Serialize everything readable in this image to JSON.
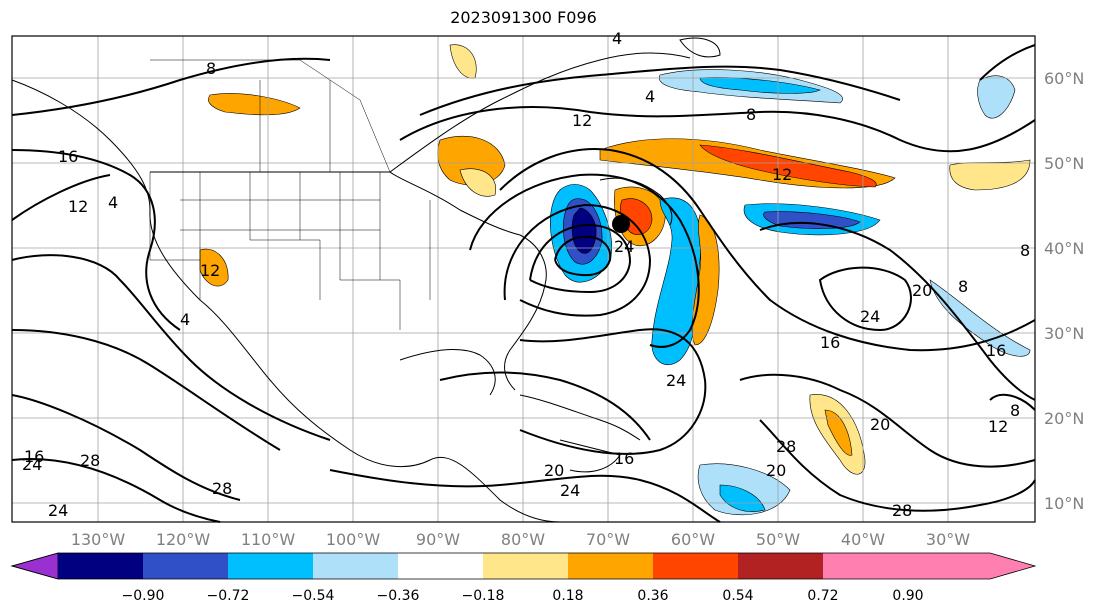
{
  "title": "2023091300 F096",
  "map": {
    "longitude_labels": [
      "130°W",
      "120°W",
      "110°W",
      "100°W",
      "90°W",
      "80°W",
      "70°W",
      "60°W",
      "50°W",
      "40°W",
      "30°W"
    ],
    "latitude_labels": [
      "60°N",
      "50°N",
      "40°N",
      "30°N",
      "20°N",
      "10°N"
    ],
    "contour_labels": [
      "8",
      "4",
      "12",
      "16",
      "12",
      "4",
      "8",
      "12",
      "4",
      "24",
      "4",
      "16",
      "12",
      "24",
      "28",
      "28",
      "24",
      "20",
      "24",
      "16",
      "16",
      "20",
      "28",
      "20",
      "24",
      "20",
      "24",
      "8",
      "8",
      "16",
      "12",
      "8",
      "28"
    ],
    "low_center_marker": "storm-center-dot"
  },
  "colorbar": {
    "labels": [
      "−0.90",
      "−0.72",
      "−0.54",
      "−0.36",
      "−0.18",
      "0.18",
      "0.36",
      "0.54",
      "0.72",
      "0.90"
    ],
    "colors": [
      "#9b30d0",
      "#000080",
      "#3050c8",
      "#00bfff",
      "#aee0fa",
      "#ffffff",
      "#ffe68a",
      "#ffa500",
      "#ff4500",
      "#b22222",
      "#ff80b0"
    ]
  }
}
